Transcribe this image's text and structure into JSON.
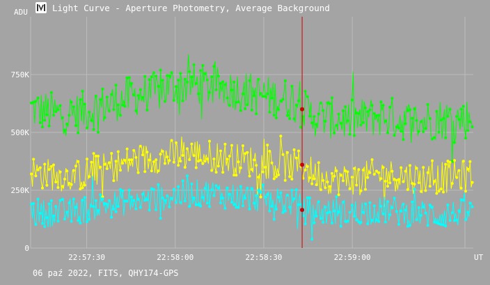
{
  "window": {
    "title": "Light Curve - Aperture Photometry, Average Background",
    "icon": "chart-logo-icon"
  },
  "footer": {
    "info": "06 paź 2022, FITS, QHY174-GPS"
  },
  "colors": {
    "background": "#a4a4a4",
    "grid": "#bcbcbc",
    "series_green": "#00ff00",
    "series_yellow": "#ffff00",
    "series_cyan": "#00ffff",
    "cursor": "#cc0000"
  },
  "chart_data": {
    "type": "line",
    "title": "Light Curve - Aperture Photometry, Average Background",
    "ylabel": "ADU",
    "xlabel": "UT",
    "y_ticks": [
      {
        "value": 0,
        "label": "0"
      },
      {
        "value": 250000,
        "label": "250K"
      },
      {
        "value": 500000,
        "label": "500K"
      },
      {
        "value": 750000,
        "label": "750K"
      }
    ],
    "x_ticks": [
      {
        "value": 30,
        "label": "22:57:30"
      },
      {
        "value": 60,
        "label": "22:58:00"
      },
      {
        "value": 90,
        "label": "22:58:30"
      },
      {
        "value": 120,
        "label": "22:59:00"
      }
    ],
    "x_range_seconds_after_22_57_00": [
      11,
      161
    ],
    "ylim": [
      0,
      1000000
    ],
    "grid": true,
    "cursor_x_seconds": 103,
    "cursor_values": [
      600000,
      360000,
      165000
    ],
    "series": [
      {
        "color_key": "series_green",
        "x": [
          11,
          17,
          23,
          29,
          35,
          41,
          47,
          53,
          59,
          65,
          71,
          77,
          83,
          89,
          95,
          101,
          103,
          107,
          113,
          119,
          125,
          131,
          137,
          143,
          149,
          155,
          161
        ],
        "values": [
          600000,
          590000,
          575000,
          590000,
          610000,
          640000,
          660000,
          670000,
          700000,
          710000,
          700000,
          690000,
          680000,
          660000,
          650000,
          640000,
          600000,
          570000,
          560000,
          550000,
          565000,
          570000,
          555000,
          545000,
          560000,
          555000,
          565000
        ]
      },
      {
        "color_key": "series_yellow",
        "x": [
          11,
          17,
          23,
          29,
          35,
          41,
          47,
          53,
          59,
          65,
          71,
          77,
          83,
          89,
          95,
          101,
          103,
          107,
          113,
          119,
          125,
          131,
          137,
          143,
          149,
          155,
          161
        ],
        "values": [
          330000,
          320000,
          310000,
          320000,
          340000,
          360000,
          380000,
          390000,
          400000,
          410000,
          400000,
          390000,
          380000,
          370000,
          360000,
          355000,
          360000,
          320000,
          300000,
          295000,
          310000,
          320000,
          310000,
          300000,
          305000,
          310000,
          315000
        ]
      },
      {
        "color_key": "series_cyan",
        "x": [
          11,
          17,
          23,
          29,
          35,
          41,
          47,
          53,
          59,
          65,
          71,
          77,
          83,
          89,
          95,
          101,
          103,
          107,
          113,
          119,
          125,
          131,
          137,
          143,
          149,
          155,
          161
        ],
        "values": [
          160000,
          150000,
          155000,
          165000,
          185000,
          195000,
          205000,
          215000,
          225000,
          235000,
          240000,
          230000,
          220000,
          215000,
          205000,
          195000,
          165000,
          160000,
          155000,
          150000,
          160000,
          165000,
          155000,
          150000,
          145000,
          150000,
          155000
        ]
      }
    ]
  }
}
